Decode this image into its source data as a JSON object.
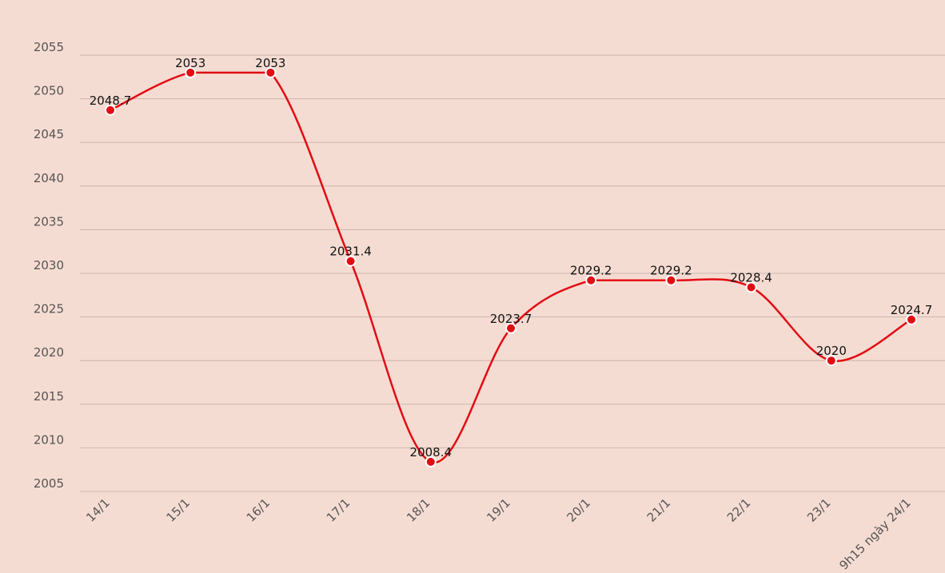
{
  "chart_data": {
    "type": "line",
    "categories": [
      "14/1",
      "15/1",
      "16/1",
      "17/1",
      "18/1",
      "19/1",
      "20/1",
      "21/1",
      "22/1",
      "23/1",
      "9h15 ngày 24/1"
    ],
    "series": [
      {
        "values": [
          2048.7,
          2053,
          2053,
          2031.4,
          2008.4,
          2023.7,
          2029.2,
          2029.2,
          2028.4,
          2020,
          2024.7
        ],
        "data_labels": [
          "2048.7",
          "2053",
          "2053",
          "2031.4",
          "2008.4",
          "2023.7",
          "2029.2",
          "2029.2",
          "2028.4",
          "2020",
          "2024.7"
        ],
        "color": "#e30b13"
      }
    ],
    "y_ticks": [
      "2055",
      "2050",
      "2045",
      "2040",
      "2035",
      "2030",
      "2025",
      "2020",
      "2015",
      "2010",
      "2005"
    ],
    "ylim": [
      2005,
      2055
    ],
    "grid": true,
    "legend": "none",
    "title": "",
    "xlabel": "",
    "ylabel": ""
  },
  "colors": {
    "background": "#f5dcd2",
    "gridline": "#c9b6ad",
    "line": "#e30b13"
  }
}
